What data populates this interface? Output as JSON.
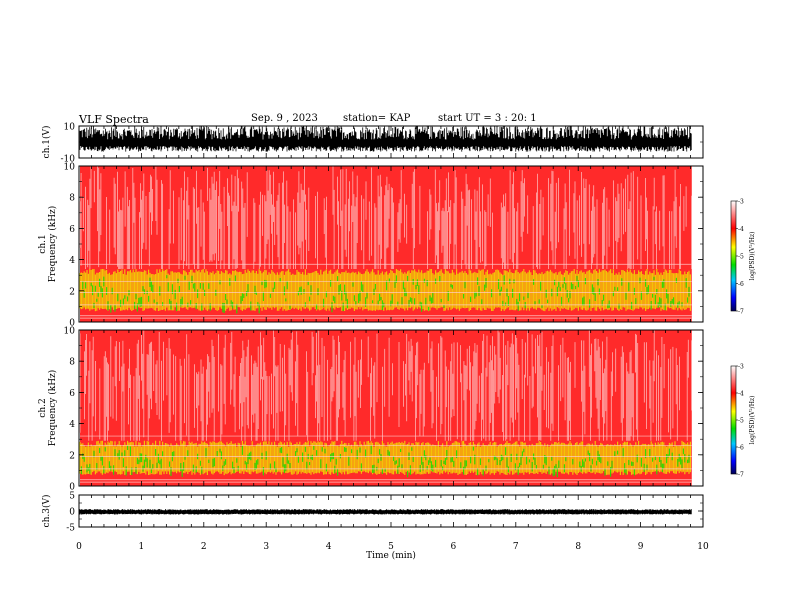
{
  "header": {
    "title": "VLF Spectra",
    "date": "Sep. 9 , 2023",
    "station": "station= KAP",
    "start_time": "start  UT =  3 : 20: 1"
  },
  "panels": {
    "ch1_wave_label": "ch.1(V)",
    "ch1_spec_label": "ch.1\nFrequency (kHz)",
    "ch2_spec_label": "ch.2\nFrequency (kHz)",
    "ch3_wave_label": "ch.3(V)",
    "colorbar_label": "log(PSD)(V²/Hz)"
  },
  "colors": {
    "spectrogram_background": "#ff2a2a",
    "waveform": "#000000"
  },
  "chart_data": [
    {
      "type": "line",
      "name": "ch1-waveform",
      "ylabel": "ch.1(V)",
      "ylim": [
        -10,
        10
      ],
      "yticks": [
        "10",
        "-10"
      ],
      "xlim": [
        0,
        10
      ],
      "description_values": "dense noise between about -6 and 10 V"
    },
    {
      "type": "heatmap",
      "name": "ch1-spectrogram",
      "ylabel": "Frequency (kHz)",
      "ylim": [
        0,
        10
      ],
      "yticks": [
        "0",
        "2",
        "4",
        "6",
        "8",
        "10"
      ],
      "xlim": [
        0,
        10
      ],
      "colorbar": {
        "range": [
          -7,
          -3
        ],
        "ticks": [
          "-3",
          "-4",
          "-5",
          "-6",
          "-7"
        ],
        "label": "log(PSD)(V²/Hz)"
      }
    },
    {
      "type": "heatmap",
      "name": "ch2-spectrogram",
      "ylabel": "Frequency (kHz)",
      "ylim": [
        0,
        10
      ],
      "yticks": [
        "0",
        "2",
        "4",
        "6",
        "8",
        "10"
      ],
      "xlim": [
        0,
        10
      ],
      "colorbar": {
        "range": [
          -7,
          -3
        ],
        "ticks": [
          "-3",
          "-4",
          "-5",
          "-6",
          "-7"
        ],
        "label": "log(PSD)(V²/Hz)"
      }
    },
    {
      "type": "line",
      "name": "ch3-waveform",
      "ylabel": "ch.3(V)",
      "ylim": [
        -5,
        5
      ],
      "yticks": [
        "5",
        "0",
        "-5"
      ],
      "xlim": [
        0,
        10
      ],
      "xlabel": "Time (min)",
      "xticks": [
        "0",
        "1",
        "2",
        "3",
        "4",
        "5",
        "6",
        "7",
        "8",
        "9",
        "10"
      ]
    }
  ]
}
